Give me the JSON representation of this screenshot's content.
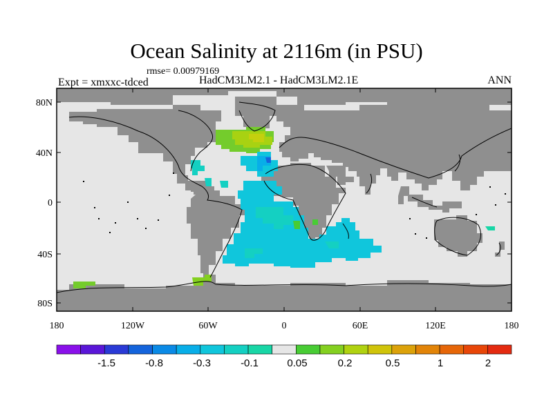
{
  "title": "Ocean Salinity at 2116m (in PSU)",
  "rmse": "rmse= 0.00979169",
  "expt": "Expt = xmxxc-tdced",
  "models": "HadCM3LM2.1 - HadCM3LM2.1E",
  "season": "ANN",
  "lat_ticks": [
    "80N",
    "40N",
    "0",
    "40S",
    "80S"
  ],
  "lon_ticks": [
    "180",
    "120W",
    "60W",
    "0",
    "60E",
    "120E",
    "180"
  ],
  "colors": {
    "land": "#8f8f8f",
    "ocean_neutral": "#e6e6e6",
    "coast": "#000000"
  },
  "colorbar": {
    "colors": [
      "#8a10ea",
      "#5a16d8",
      "#2a3ad6",
      "#1464dc",
      "#0a8ae6",
      "#08aee8",
      "#10c6dc",
      "#14d0c2",
      "#18d6a6",
      "#e6e6e6",
      "#48cc34",
      "#84d020",
      "#b0d210",
      "#d0c40a",
      "#dca20a",
      "#e28408",
      "#e66608",
      "#e84608",
      "#e42a10"
    ],
    "labels": [
      "-1.5",
      "-0.8",
      "-0.3",
      "-0.1",
      "0.05",
      "0.2",
      "0.5",
      "1",
      "2"
    ]
  }
}
